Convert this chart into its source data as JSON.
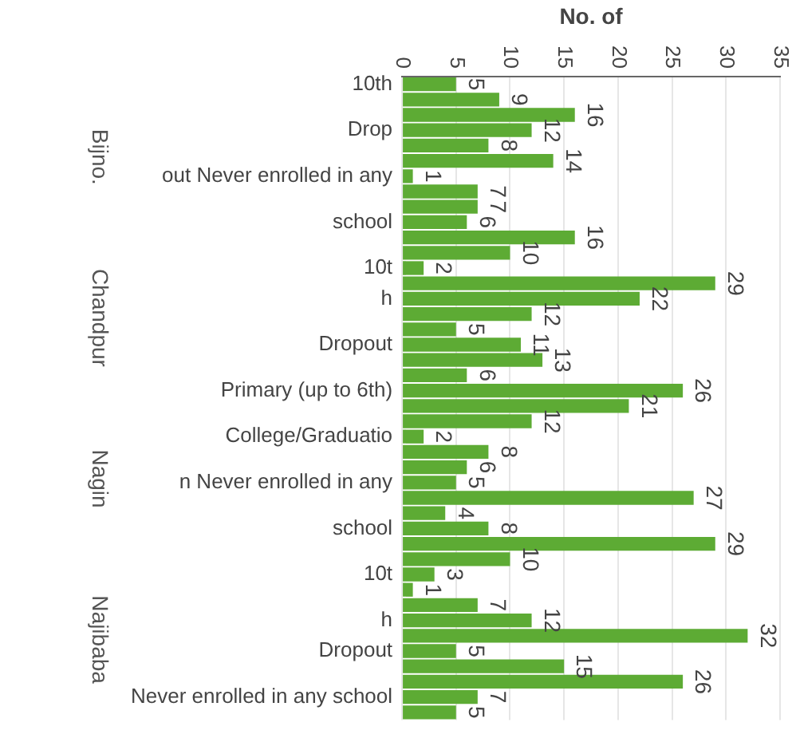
{
  "chart_data": {
    "type": "bar",
    "orientation": "horizontal",
    "title": "No. of",
    "categories": [
      "10th",
      null,
      null,
      "Drop",
      null,
      null,
      "out Never enrolled in any",
      null,
      null,
      "school",
      null,
      null,
      "10t",
      null,
      "h",
      null,
      null,
      "Dropout",
      null,
      null,
      "Primary (up to 6th)",
      null,
      null,
      "College/Graduatio",
      null,
      null,
      "n Never enrolled in any",
      null,
      null,
      "school",
      null,
      null,
      "10t",
      null,
      null,
      "h",
      null,
      "Dropout",
      null,
      null,
      "Never enrolled in any school",
      null
    ],
    "values": [
      5,
      9,
      16,
      12,
      8,
      14,
      1,
      7,
      7,
      6,
      16,
      10,
      2,
      29,
      22,
      12,
      5,
      11,
      13,
      6,
      26,
      21,
      12,
      2,
      8,
      6,
      5,
      27,
      4,
      8,
      29,
      10,
      3,
      1,
      7,
      12,
      32,
      5,
      15,
      26,
      7,
      5
    ],
    "color": "#5dab34",
    "xlim": [
      0,
      35
    ],
    "xticks": [
      0,
      5,
      10,
      15,
      20,
      25,
      30,
      35
    ],
    "grid": "x",
    "data_labels": true,
    "annotations": [
      "Bijno.",
      "Chandpur",
      "Nagin",
      "Najibaba"
    ]
  }
}
